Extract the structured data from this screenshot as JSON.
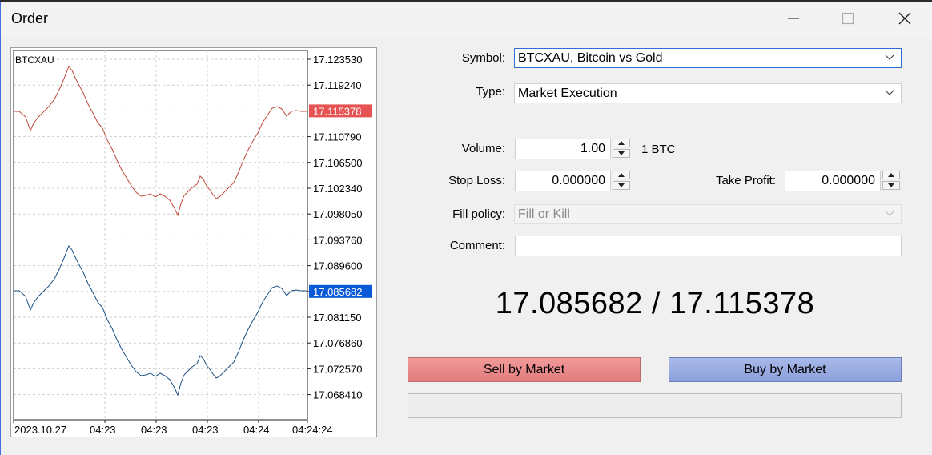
{
  "window": {
    "title": "Order"
  },
  "chart": {
    "symbol": "BTCXAU",
    "y_ticks": [
      "17.123530",
      "17.119240",
      "17.115378",
      "17.110790",
      "17.106500",
      "17.102340",
      "17.098050",
      "17.093760",
      "17.089600",
      "17.085682",
      "17.081150",
      "17.076860",
      "17.072570",
      "17.068410"
    ],
    "ask_label": "17.115378",
    "bid_label": "17.085682",
    "x_ticks": [
      "2023.10.27",
      "04:23",
      "04:23",
      "04:23",
      "04:24",
      "04:24:24"
    ],
    "colors": {
      "ask": "#e55353",
      "bid": "#0a59d6",
      "ask_line": "#c0483a",
      "bid_line": "#1a4f86"
    }
  },
  "form": {
    "symbol_label": "Symbol:",
    "symbol_value": "BTCXAU, Bitcoin vs Gold",
    "type_label": "Type:",
    "type_value": "Market Execution",
    "volume_label": "Volume:",
    "volume_value": "1.00",
    "volume_unit": "1 BTC",
    "stop_loss_label": "Stop Loss:",
    "stop_loss_value": "0.000000",
    "take_profit_label": "Take Profit:",
    "take_profit_value": "0.000000",
    "fill_policy_label": "Fill policy:",
    "fill_policy_value": "Fill or Kill",
    "comment_label": "Comment:",
    "comment_value": ""
  },
  "quote": {
    "text": "17.085682 / 17.115378"
  },
  "buttons": {
    "sell": "Sell by Market",
    "buy": "Buy by Market"
  }
}
